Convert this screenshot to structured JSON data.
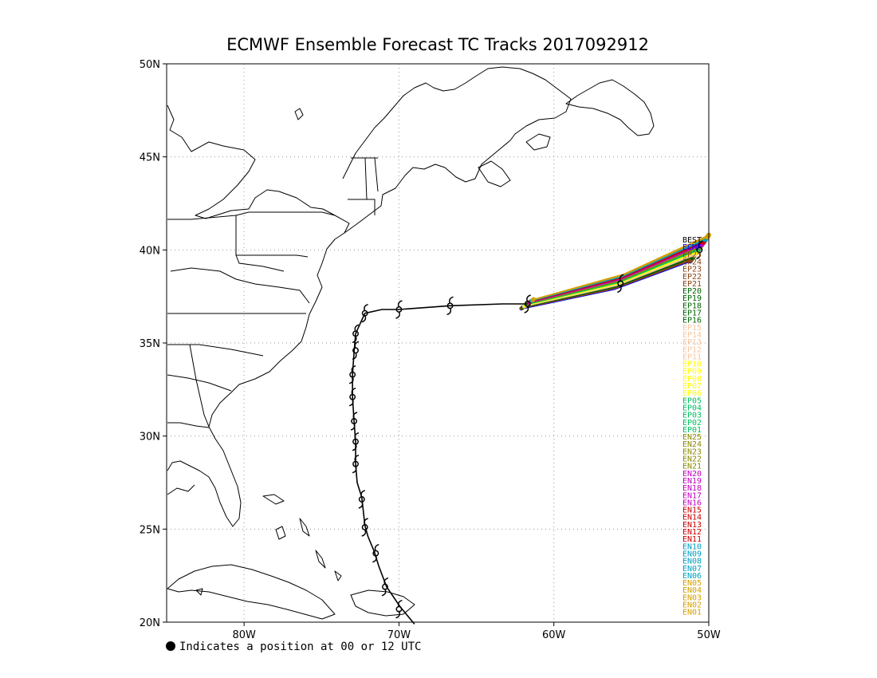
{
  "title": "ECMWF Ensemble Forecast TC Tracks 2017092912",
  "footnote": "Indicates a position at 00 or 12 UTC",
  "map": {
    "lon_range": [
      -85,
      -50
    ],
    "lat_range": [
      20,
      50
    ],
    "lon_ticks": [
      {
        "value": -80,
        "label": "80W"
      },
      {
        "value": -70,
        "label": "70W"
      },
      {
        "value": -60,
        "label": "60W"
      },
      {
        "value": -50,
        "label": "50W"
      }
    ],
    "lat_ticks": [
      {
        "value": 20,
        "label": "20N"
      },
      {
        "value": 25,
        "label": "25N"
      },
      {
        "value": 30,
        "label": "30N"
      },
      {
        "value": 35,
        "label": "35N"
      },
      {
        "value": 40,
        "label": "40N"
      },
      {
        "value": 45,
        "label": "45N"
      },
      {
        "value": 50,
        "label": "50N"
      }
    ],
    "grid": "dotted"
  },
  "best_track": {
    "name": "BEST",
    "color": "#000000",
    "points": [
      [
        -69.0,
        19.9
      ],
      [
        -69.9,
        20.8
      ],
      [
        -70.8,
        21.9
      ],
      [
        -71.3,
        23.0
      ],
      [
        -71.6,
        23.8
      ],
      [
        -72.0,
        24.6
      ],
      [
        -72.2,
        25.2
      ],
      [
        -72.4,
        26.7
      ],
      [
        -72.7,
        27.5
      ],
      [
        -72.8,
        28.5
      ],
      [
        -72.8,
        29.7
      ],
      [
        -72.9,
        30.8
      ],
      [
        -73.0,
        32.1
      ],
      [
        -73.0,
        33.3
      ],
      [
        -72.9,
        34.5
      ],
      [
        -72.8,
        35.5
      ],
      [
        -72.2,
        36.6
      ],
      [
        -71.1,
        36.8
      ],
      [
        -70.0,
        36.8
      ],
      [
        -66.7,
        37.0
      ],
      [
        -63.3,
        37.1
      ],
      [
        -61.7,
        37.1
      ]
    ],
    "symbols": [
      [
        -70.0,
        20.7
      ],
      [
        -70.9,
        21.9
      ],
      [
        -71.5,
        23.7
      ],
      [
        -72.2,
        25.1
      ],
      [
        -72.4,
        26.6
      ],
      [
        -72.8,
        28.5
      ],
      [
        -72.8,
        29.7
      ],
      [
        -72.9,
        30.8
      ],
      [
        -73.0,
        32.1
      ],
      [
        -73.0,
        33.3
      ],
      [
        -72.8,
        34.6
      ],
      [
        -72.8,
        35.5
      ],
      [
        -72.2,
        36.6
      ],
      [
        -70.0,
        36.8
      ],
      [
        -66.7,
        37.0
      ],
      [
        -61.7,
        37.1
      ]
    ]
  },
  "forecast_symbols": [
    [
      -55.7,
      38.2
    ],
    [
      -50.6,
      40.0
    ]
  ],
  "ensemble_legend": [
    {
      "name": "BEST",
      "color": "#000000"
    },
    {
      "name": "ECMF",
      "color": "#0000ff"
    },
    {
      "name": "EP25",
      "color": "#8b4513"
    },
    {
      "name": "EP24",
      "color": "#8b4513"
    },
    {
      "name": "EP23",
      "color": "#8b4513"
    },
    {
      "name": "EP22",
      "color": "#8b4513"
    },
    {
      "name": "EP21",
      "color": "#8b4513"
    },
    {
      "name": "EP20",
      "color": "#006400"
    },
    {
      "name": "EP19",
      "color": "#006400"
    },
    {
      "name": "EP18",
      "color": "#006400"
    },
    {
      "name": "EP17",
      "color": "#006400"
    },
    {
      "name": "EP16",
      "color": "#006400"
    },
    {
      "name": "EP15",
      "color": "#f4c7a0"
    },
    {
      "name": "EP14",
      "color": "#f4c7a0"
    },
    {
      "name": "EP13",
      "color": "#f4c7a0"
    },
    {
      "name": "EP12",
      "color": "#f4c7a0"
    },
    {
      "name": "EP11",
      "color": "#f4c7a0"
    },
    {
      "name": "EP10",
      "color": "#ffff00"
    },
    {
      "name": "EP09",
      "color": "#ffff00"
    },
    {
      "name": "EP08",
      "color": "#ffff00"
    },
    {
      "name": "EP07",
      "color": "#ffff00"
    },
    {
      "name": "EP06",
      "color": "#ffff00"
    },
    {
      "name": "EP05",
      "color": "#00c060"
    },
    {
      "name": "EP04",
      "color": "#00c060"
    },
    {
      "name": "EP03",
      "color": "#00c060"
    },
    {
      "name": "EP02",
      "color": "#00c060"
    },
    {
      "name": "EP01",
      "color": "#00c060"
    },
    {
      "name": "EN25",
      "color": "#8b8b00"
    },
    {
      "name": "EN24",
      "color": "#8b8b00"
    },
    {
      "name": "EN23",
      "color": "#8b8b00"
    },
    {
      "name": "EN22",
      "color": "#8b8b00"
    },
    {
      "name": "EN21",
      "color": "#8b8b00"
    },
    {
      "name": "EN20",
      "color": "#c000c0"
    },
    {
      "name": "EN19",
      "color": "#c000c0"
    },
    {
      "name": "EN18",
      "color": "#c000c0"
    },
    {
      "name": "EN17",
      "color": "#c000c0"
    },
    {
      "name": "EN16",
      "color": "#c000c0"
    },
    {
      "name": "EN15",
      "color": "#cc0000"
    },
    {
      "name": "EN14",
      "color": "#cc0000"
    },
    {
      "name": "EN13",
      "color": "#cc0000"
    },
    {
      "name": "EN12",
      "color": "#cc0000"
    },
    {
      "name": "EN11",
      "color": "#cc0000"
    },
    {
      "name": "EN10",
      "color": "#00a0c0"
    },
    {
      "name": "EN09",
      "color": "#00a0c0"
    },
    {
      "name": "EN08",
      "color": "#00a0c0"
    },
    {
      "name": "EN07",
      "color": "#00a0c0"
    },
    {
      "name": "EN06",
      "color": "#00a0c0"
    },
    {
      "name": "EN05",
      "color": "#d4a000"
    },
    {
      "name": "EN04",
      "color": "#d4a000"
    },
    {
      "name": "EN03",
      "color": "#d4a000"
    },
    {
      "name": "EN02",
      "color": "#d4a000"
    },
    {
      "name": "EN01",
      "color": "#d4a000"
    }
  ]
}
